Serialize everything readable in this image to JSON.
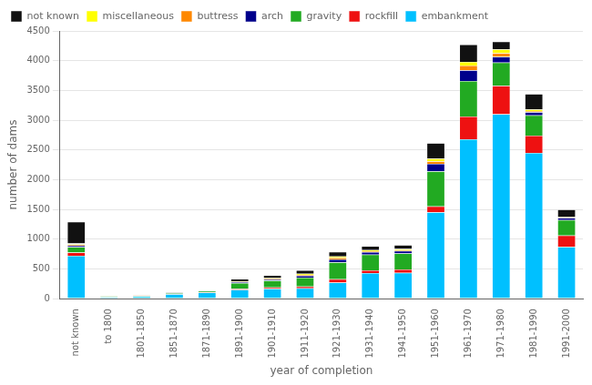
{
  "chart_data": {
    "type": "bar",
    "stacked": true,
    "xlabel": "year of completion",
    "ylabel": "number of dams",
    "categories": [
      "not known",
      "to 1800",
      "1801-1850",
      "1851-1870",
      "1871-1890",
      "1891-1900",
      "1901-1910",
      "1911-1920",
      "1921-1930",
      "1931-1940",
      "1941-1950",
      "1951-1960",
      "1961-1970",
      "1971-1980",
      "1981-1990",
      "1991-2000"
    ],
    "series": [
      {
        "name": "embankment",
        "color": "#00C0FF",
        "values": [
          720,
          30,
          35,
          75,
          100,
          145,
          165,
          175,
          270,
          430,
          435,
          1450,
          2680,
          3100,
          2450,
          870
        ]
      },
      {
        "name": "rockfill",
        "color": "#EE1111",
        "values": [
          55,
          4,
          4,
          4,
          8,
          20,
          25,
          30,
          55,
          45,
          55,
          100,
          380,
          480,
          290,
          190
        ]
      },
      {
        "name": "gravity",
        "color": "#22AA22",
        "values": [
          90,
          8,
          12,
          12,
          18,
          95,
          115,
          150,
          285,
          265,
          270,
          590,
          600,
          390,
          340,
          260
        ]
      },
      {
        "name": "arch",
        "color": "#00008B",
        "values": [
          28,
          2,
          2,
          2,
          4,
          18,
          18,
          28,
          50,
          40,
          40,
          125,
          180,
          95,
          55,
          35
        ]
      },
      {
        "name": "buttress",
        "color": "#FF8800",
        "values": [
          18,
          1,
          1,
          1,
          2,
          8,
          12,
          18,
          22,
          18,
          18,
          45,
          80,
          60,
          18,
          8
        ]
      },
      {
        "name": "miscellaneous",
        "color": "#FFFF00",
        "values": [
          18,
          1,
          1,
          1,
          2,
          8,
          12,
          18,
          28,
          18,
          18,
          45,
          60,
          65,
          28,
          8
        ]
      },
      {
        "name": "not known",
        "color": "#111111",
        "values": [
          360,
          4,
          4,
          4,
          8,
          38,
          45,
          55,
          75,
          65,
          65,
          260,
          290,
          130,
          260,
          125
        ]
      }
    ],
    "ylim": [
      0,
      4500
    ],
    "yticks": [
      0,
      500,
      1000,
      1500,
      2000,
      2500,
      3000,
      3500,
      4000,
      4500
    ],
    "grid": "y",
    "legend": "upper left"
  }
}
